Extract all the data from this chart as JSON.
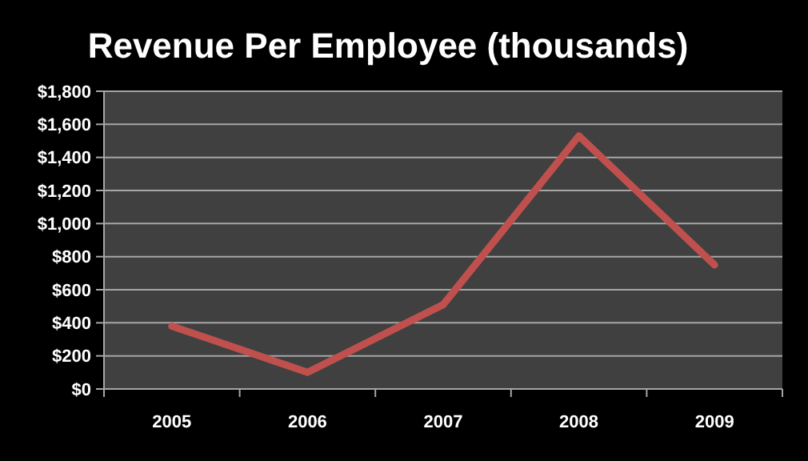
{
  "chart_data": {
    "type": "line",
    "title": "Revenue Per Employee (thousands)",
    "categories": [
      "2005",
      "2006",
      "2007",
      "2008",
      "2009"
    ],
    "series": [
      {
        "color": "#c0504d",
        "values": [
          380,
          100,
          510,
          1530,
          750
        ]
      }
    ],
    "ylim": [
      0,
      1800
    ],
    "yticks": [
      {
        "value": 0,
        "label": "$0"
      },
      {
        "value": 200,
        "label": "$200"
      },
      {
        "value": 400,
        "label": "$400"
      },
      {
        "value": 600,
        "label": "$600"
      },
      {
        "value": 800,
        "label": "$800"
      },
      {
        "value": 1000,
        "label": "$1,000"
      },
      {
        "value": 1200,
        "label": "$1,200"
      },
      {
        "value": 1400,
        "label": "$1,400"
      },
      {
        "value": 1600,
        "label": "$1,600"
      },
      {
        "value": 1800,
        "label": "$1,800"
      }
    ],
    "grid": "y",
    "marker": "none",
    "line_style": "solid"
  }
}
